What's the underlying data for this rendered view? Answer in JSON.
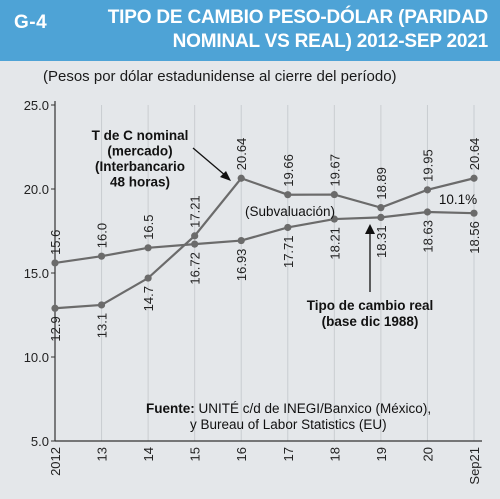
{
  "header": {
    "fig_id": "G-4",
    "title": "TIPO DE CAMBIO PESO-DÓLAR (PARIDAD NOMINAL VS REAL) 2012-SEP 2021",
    "bg_color": "#4ea3d6"
  },
  "chart_data": {
    "type": "line",
    "subtitle": "(Pesos por dólar estadunidense al cierre del período)",
    "categories": [
      "2012",
      "13",
      "14",
      "15",
      "16",
      "17",
      "18",
      "19",
      "20",
      "Sep21"
    ],
    "ylim": [
      5.0,
      25.0
    ],
    "yticks": [
      "5.0",
      "10.0",
      "15.0",
      "20.0",
      "25.0"
    ],
    "grid": "vertical",
    "series": [
      {
        "key": "nominal",
        "color": "#6b6b6b",
        "values": [
          12.9,
          13.1,
          14.7,
          17.21,
          20.64,
          19.66,
          19.67,
          18.89,
          19.95,
          20.64
        ],
        "labels": [
          "12.9",
          "13.1",
          "14.7",
          "17.21",
          "20.64",
          "19.66",
          "19.67",
          "18.89",
          "19.95",
          "20.64"
        ]
      },
      {
        "key": "real",
        "color": "#6b6b6b",
        "values": [
          15.6,
          16.0,
          16.5,
          16.72,
          16.93,
          17.71,
          18.21,
          18.31,
          18.63,
          18.56
        ],
        "labels": [
          "15.6",
          "16.0",
          "16.5",
          "16.72",
          "16.93",
          "17.71",
          "18.21",
          "18.31",
          "18.63",
          "18.56"
        ]
      }
    ],
    "annotations": {
      "nominal_lines": [
        "T de C nominal",
        "(mercado)",
        "(Interbancario",
        "48 horas)"
      ],
      "real_lines": [
        "Tipo de cambio real",
        "(base dic 1988)"
      ],
      "subvaluacion": "(Subvaluación)",
      "gap_pct": "10.1%"
    },
    "source": {
      "bold": "Fuente:",
      "line1": "UNITÉ c/d de INEGI/Banxico (México),",
      "line2": "y Bureau of Labor Statistics (EU)"
    }
  }
}
